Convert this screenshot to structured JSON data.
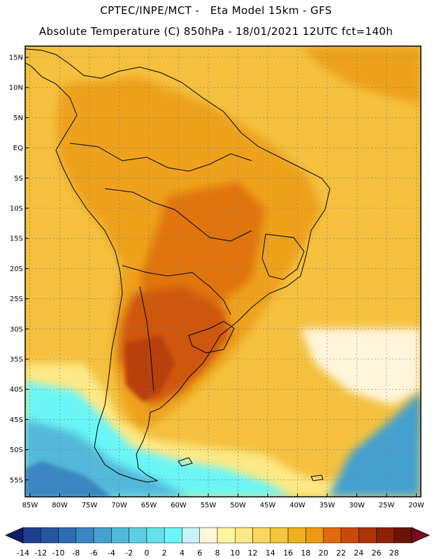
{
  "header": {
    "line1": "CPTEC/INPE/MCT -   Eta Model 15km - GFS",
    "line2": "Absolute Temperature (C) 850hPa - 18/01/2021 12UTC fct=140h"
  },
  "map": {
    "lat_labels": [
      "15N",
      "10N",
      "5N",
      "EQ",
      "5S",
      "10S",
      "15S",
      "20S",
      "25S",
      "30S",
      "35S",
      "40S",
      "45S",
      "50S",
      "55S"
    ],
    "lon_labels": [
      "85W",
      "80W",
      "75W",
      "70W",
      "65W",
      "60W",
      "55W",
      "50W",
      "45W",
      "40W",
      "35W",
      "30W",
      "25W",
      "20W"
    ]
  },
  "colorbar": {
    "labels": [
      "-14",
      "-12",
      "-10",
      "-8",
      "-6",
      "-4",
      "-2",
      "0",
      "2",
      "4",
      "6",
      "8",
      "10",
      "12",
      "14",
      "16",
      "18",
      "20",
      "22",
      "24",
      "26",
      "28"
    ],
    "colors": [
      "#1d3f8e",
      "#2656a0",
      "#2f6cb2",
      "#3a86c2",
      "#45a0ce",
      "#52b8da",
      "#5ccfe2",
      "#63e2ea",
      "#6af6f6",
      "#c8f3f8",
      "#fff6dc",
      "#fff6a0",
      "#fde985",
      "#f9d760",
      "#f3c43d",
      "#f0b020",
      "#ed9a12",
      "#e26a08",
      "#c84a06",
      "#ad3204",
      "#8c2304",
      "#6b1403"
    ],
    "end_colors": {
      "low": "#131c66",
      "high": "#7a0a25"
    }
  }
}
